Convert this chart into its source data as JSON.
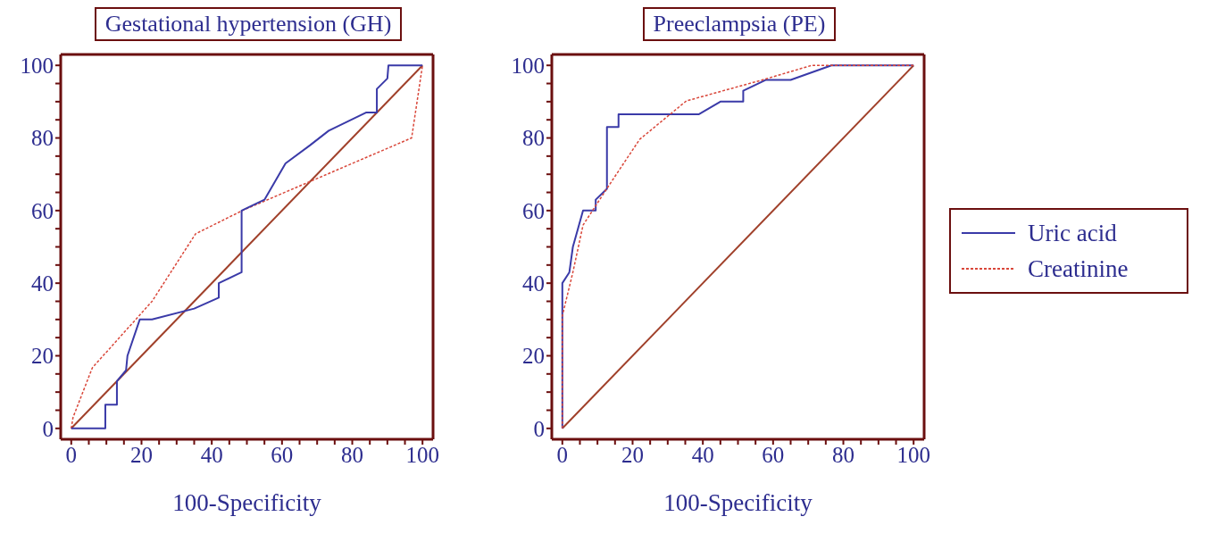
{
  "chart_data": [
    {
      "type": "line",
      "title": "Gestational hypertension (GH)",
      "xlabel": "100-Specificity",
      "xlim": [
        -3,
        103
      ],
      "ylim": [
        -3,
        103
      ],
      "xticks": [
        0,
        {
          "value": 5,
          "label": null
        },
        {
          "value": 10,
          "label": null
        },
        {
          "value": 15,
          "label": null
        },
        20,
        {
          "value": 25,
          "label": null
        },
        {
          "value": 30,
          "label": null
        },
        {
          "value": 35,
          "label": null
        },
        40,
        {
          "value": 45,
          "label": null
        },
        {
          "value": 50,
          "label": null
        },
        {
          "value": 55,
          "label": null
        },
        60,
        {
          "value": 65,
          "label": null
        },
        {
          "value": 70,
          "label": null
        },
        {
          "value": 75,
          "label": null
        },
        80,
        {
          "value": 85,
          "label": null
        },
        {
          "value": 90,
          "label": null
        },
        {
          "value": 95,
          "label": null
        },
        100
      ],
      "yticks": [
        0,
        {
          "value": 5,
          "label": null
        },
        {
          "value": 10,
          "label": null
        },
        {
          "value": 15,
          "label": null
        },
        20,
        {
          "value": 25,
          "label": null
        },
        {
          "value": 30,
          "label": null
        },
        {
          "value": 35,
          "label": null
        },
        40,
        {
          "value": 45,
          "label": null
        },
        {
          "value": 50,
          "label": null
        },
        {
          "value": 55,
          "label": null
        },
        60,
        {
          "value": 65,
          "label": null
        },
        {
          "value": 70,
          "label": null
        },
        {
          "value": 75,
          "label": null
        },
        80,
        {
          "value": 85,
          "label": null
        },
        {
          "value": 90,
          "label": null
        },
        {
          "value": 95,
          "label": null
        },
        100
      ],
      "grid": false,
      "legend": false,
      "marker": "none",
      "series": [
        {
          "color": "#a0402a",
          "line_style": "solid",
          "x": [
            0,
            100
          ],
          "values": [
            0,
            100
          ]
        },
        {
          "color": "#d9473a",
          "line_style": "dotted",
          "x": [
            0,
            0.5,
            6,
            23,
            35.4,
            48.7,
            96.9,
            100
          ],
          "values": [
            0,
            3,
            16.7,
            35,
            53.6,
            60,
            80,
            100
          ]
        },
        {
          "color": "#3a3aa8",
          "line_style": "solid",
          "x": [
            0,
            9.7,
            9.7,
            13,
            13,
            15.6,
            16,
            19.5,
            23,
            35,
            42,
            42,
            48.5,
            48.5,
            55,
            61,
            68,
            73.3,
            83.9,
            87,
            87,
            90,
            90.3,
            100
          ],
          "values": [
            0,
            0,
            6.5,
            6.5,
            13,
            16,
            20,
            30,
            30,
            33,
            36,
            40,
            43,
            60,
            63,
            73,
            78,
            82,
            87,
            87,
            93.5,
            96.4,
            100,
            100
          ]
        }
      ]
    },
    {
      "type": "line",
      "title": "Preeclampsia (PE)",
      "xlabel": "100-Specificity",
      "xlim": [
        -3,
        103
      ],
      "ylim": [
        -3,
        103
      ],
      "xticks": [
        0,
        {
          "value": 5,
          "label": null
        },
        {
          "value": 10,
          "label": null
        },
        {
          "value": 15,
          "label": null
        },
        20,
        {
          "value": 25,
          "label": null
        },
        {
          "value": 30,
          "label": null
        },
        {
          "value": 35,
          "label": null
        },
        40,
        {
          "value": 45,
          "label": null
        },
        {
          "value": 50,
          "label": null
        },
        {
          "value": 55,
          "label": null
        },
        60,
        {
          "value": 65,
          "label": null
        },
        {
          "value": 70,
          "label": null
        },
        {
          "value": 75,
          "label": null
        },
        80,
        {
          "value": 85,
          "label": null
        },
        {
          "value": 90,
          "label": null
        },
        {
          "value": 95,
          "label": null
        },
        100
      ],
      "yticks": [
        0,
        {
          "value": 5,
          "label": null
        },
        {
          "value": 10,
          "label": null
        },
        {
          "value": 15,
          "label": null
        },
        20,
        {
          "value": 25,
          "label": null
        },
        {
          "value": 30,
          "label": null
        },
        {
          "value": 35,
          "label": null
        },
        40,
        {
          "value": 45,
          "label": null
        },
        {
          "value": 50,
          "label": null
        },
        {
          "value": 55,
          "label": null
        },
        60,
        {
          "value": 65,
          "label": null
        },
        {
          "value": 70,
          "label": null
        },
        {
          "value": 75,
          "label": null
        },
        80,
        {
          "value": 85,
          "label": null
        },
        {
          "value": 90,
          "label": null
        },
        {
          "value": 95,
          "label": null
        },
        100
      ],
      "grid": false,
      "legend": "right",
      "marker": "none",
      "series": [
        {
          "color": "#a0402a",
          "line_style": "solid",
          "x": [
            0,
            100
          ],
          "values": [
            0,
            100
          ]
        },
        {
          "name": "Uric acid",
          "color": "#3a3aa8",
          "line_style": "solid",
          "x": [
            0,
            0,
            2,
            3,
            5.9,
            9.5,
            9.5,
            12.7,
            12.7,
            16,
            16,
            38.8,
            45,
            51.5,
            51.5,
            58,
            65,
            76.6,
            100
          ],
          "values": [
            0,
            40,
            43,
            50,
            60,
            60,
            63,
            66,
            83,
            83,
            86.5,
            86.5,
            90,
            90,
            93,
            96,
            96,
            100,
            100
          ]
        },
        {
          "name": "Creatinine",
          "color": "#d9473a",
          "line_style": "dotted",
          "x": [
            0,
            0,
            3,
            5.9,
            12.3,
            22,
            35.3,
            57,
            71,
            100
          ],
          "values": [
            0,
            31,
            43,
            56,
            65.5,
            79.6,
            90.2,
            96,
            100,
            100
          ]
        }
      ]
    }
  ]
}
